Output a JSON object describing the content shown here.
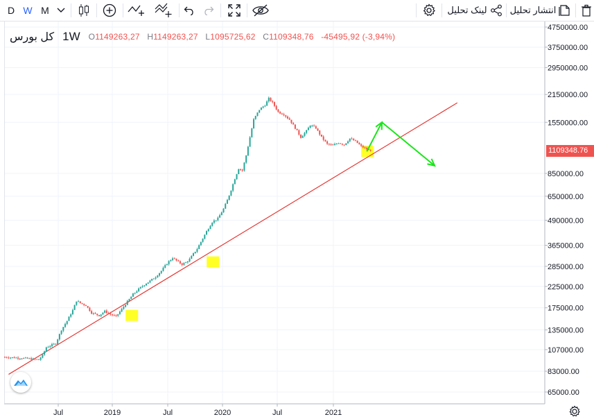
{
  "toolbar": {
    "interval_d": "D",
    "interval_w": "W",
    "interval_m": "M",
    "publish_label": "انتشار تحلیل",
    "share_label": "لینک تحلیل",
    "icons": [
      "chevron-down-icon",
      "candles-icon",
      "plus-circle-icon",
      "indicators-icon",
      "compare-icon",
      "undo-icon",
      "redo-icon",
      "fullscreen-icon",
      "hide-icon",
      "gear-icon",
      "share-icon",
      "publish-icon",
      "trash-icon"
    ]
  },
  "legend": {
    "symbol": "کل بورس",
    "timeframe": "1W",
    "o_key": "O",
    "o_val": "1149263,27",
    "h_key": "H",
    "h_val": "1149263,27",
    "l_key": "L",
    "l_val": "1095725,62",
    "c_key": "C",
    "c_val": "1109348,76",
    "change": "-45495,92 (-3,94%)"
  },
  "last_price_label": "1109348.76",
  "colors": {
    "up": "#26a69a",
    "down": "#ef5350",
    "trendline": "#e53935",
    "arrows": "#19e619",
    "highlight": "#ffff00",
    "accent": "#2962ff"
  },
  "chart_data": {
    "type": "candlestick",
    "title": "کل بورس",
    "interval": "1W",
    "y_scale": "log",
    "x_tick_labels": [
      "Jul",
      "2019",
      "Jul",
      "2020",
      "Jul",
      "2021"
    ],
    "y_tick_labels": [
      "4750000.00",
      "3750000.00",
      "2950000.00",
      "2150000.00",
      "1550000.00",
      "1109348.76",
      "850000.00",
      "650000.00",
      "490000.00",
      "365000.00",
      "285000.00",
      "225000.00",
      "175000.00",
      "135000.00",
      "107000.00",
      "83000.00",
      "65000.00"
    ],
    "y_ticks": [
      4750000,
      3750000,
      2950000,
      2150000,
      1550000,
      850000,
      650000,
      490000,
      365000,
      285000,
      225000,
      175000,
      135000,
      107000,
      83000,
      65000
    ],
    "last_close": 1109348.76,
    "close_path": [
      [
        0,
        98000
      ],
      [
        8,
        97000
      ],
      [
        14,
        96000
      ],
      [
        18,
        95000
      ],
      [
        20,
        100000
      ],
      [
        22,
        110000
      ],
      [
        24,
        112000
      ],
      [
        27,
        115000
      ],
      [
        30,
        135000
      ],
      [
        33,
        150000
      ],
      [
        36,
        170000
      ],
      [
        38,
        190000
      ],
      [
        40,
        185000
      ],
      [
        43,
        180000
      ],
      [
        46,
        165000
      ],
      [
        50,
        160000
      ],
      [
        53,
        168000
      ],
      [
        56,
        162000
      ],
      [
        59,
        158000
      ],
      [
        62,
        172000
      ],
      [
        65,
        188000
      ],
      [
        68,
        205000
      ],
      [
        71,
        218000
      ],
      [
        74,
        230000
      ],
      [
        77,
        240000
      ],
      [
        80,
        252000
      ],
      [
        83,
        270000
      ],
      [
        86,
        295000
      ],
      [
        89,
        315000
      ],
      [
        92,
        300000
      ],
      [
        94,
        292000
      ],
      [
        96,
        298000
      ],
      [
        98,
        310000
      ],
      [
        100,
        330000
      ],
      [
        102,
        350000
      ],
      [
        104,
        380000
      ],
      [
        107,
        430000
      ],
      [
        110,
        480000
      ],
      [
        113,
        500000
      ],
      [
        116,
        560000
      ],
      [
        118,
        620000
      ],
      [
        120,
        700000
      ],
      [
        122,
        800000
      ],
      [
        124,
        900000
      ],
      [
        126,
        880000
      ],
      [
        128,
        1050000
      ],
      [
        130,
        1300000
      ],
      [
        132,
        1600000
      ],
      [
        135,
        1800000
      ],
      [
        138,
        1900000
      ],
      [
        140,
        2050000
      ],
      [
        142,
        1950000
      ],
      [
        145,
        1750000
      ],
      [
        148,
        1700000
      ],
      [
        151,
        1600000
      ],
      [
        154,
        1450000
      ],
      [
        157,
        1300000
      ],
      [
        160,
        1400000
      ],
      [
        162,
        1500000
      ],
      [
        165,
        1450000
      ],
      [
        168,
        1300000
      ],
      [
        171,
        1200000
      ],
      [
        174,
        1180000
      ],
      [
        177,
        1220000
      ],
      [
        180,
        1190000
      ],
      [
        183,
        1280000
      ],
      [
        186,
        1240000
      ],
      [
        189,
        1170000
      ],
      [
        192,
        1130000
      ],
      [
        194,
        1109348.76
      ]
    ],
    "annotations": [
      {
        "type": "trendline",
        "from": [
          2,
          80000
        ],
        "to": [
          240,
          1950000
        ]
      },
      {
        "type": "highlight",
        "at": [
          67,
          160000
        ]
      },
      {
        "type": "highlight",
        "at": [
          110,
          300000
        ]
      },
      {
        "type": "highlight",
        "at": [
          192,
          1100000
        ]
      },
      {
        "type": "arrow",
        "from": [
          192,
          1100000
        ],
        "to": [
          200,
          1550000
        ]
      },
      {
        "type": "arrow",
        "from": [
          200,
          1550000
        ],
        "to": [
          228,
          930000
        ]
      }
    ]
  }
}
